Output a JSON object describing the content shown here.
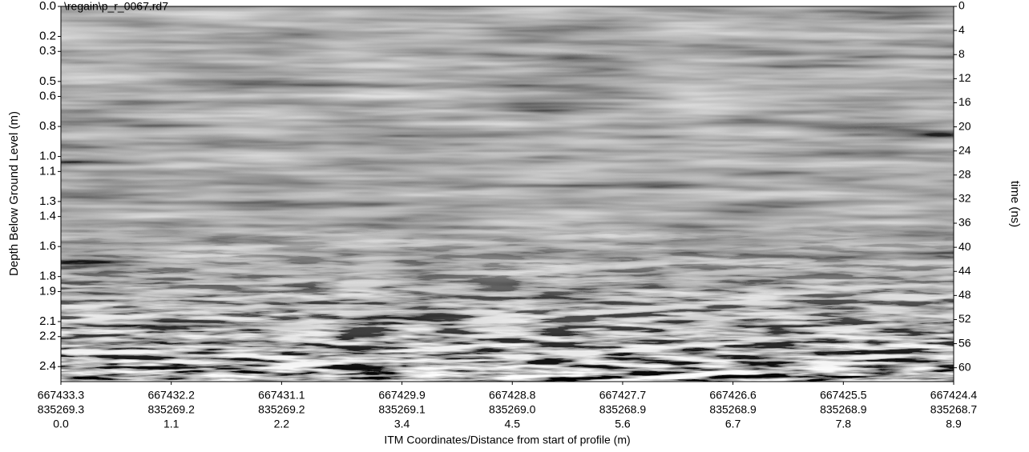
{
  "chart_data": {
    "type": "radargram",
    "title": "\\regain\\p_r_0067.rd7",
    "ylabel": "Depth Below Ground Level (m)",
    "y2label": "time (ns)",
    "xlabel": "ITM Coordinates/Distance from start of profile (m)",
    "xlim": [
      0,
      8.9
    ],
    "xticks": [
      {
        "value": 0,
        "label": "0.0"
      },
      {
        "value": 1.1,
        "label": "1.1"
      },
      {
        "value": 2.2,
        "label": "2.2"
      },
      {
        "value": 3.4,
        "label": "3.4"
      },
      {
        "value": 4.5,
        "label": "4.5"
      },
      {
        "value": 5.6,
        "label": "5.6"
      },
      {
        "value": 6.7,
        "label": "6.7"
      },
      {
        "value": 7.8,
        "label": "7.8"
      },
      {
        "value": 8.9,
        "label": "8.9"
      }
    ],
    "x_easting": [
      "667433.3",
      "667432.2",
      "667431.1",
      "667429.9",
      "667428.8",
      "667427.7",
      "667426.6",
      "667425.5",
      "667424.4"
    ],
    "x_northing": [
      "835269.3",
      "835269.2",
      "835269.2",
      "835269.1",
      "835269.0",
      "835268.9",
      "835268.9",
      "835268.9",
      "835268.7"
    ],
    "ylim": [
      0,
      2.5
    ],
    "yticks": [
      {
        "value": 0,
        "label": "0.0"
      },
      {
        "value": 0.2,
        "label": "0.2"
      },
      {
        "value": 0.3,
        "label": "0.3"
      },
      {
        "value": 0.5,
        "label": "0.5"
      },
      {
        "value": 0.6,
        "label": "0.6"
      },
      {
        "value": 0.8,
        "label": "0.8"
      },
      {
        "value": 1,
        "label": "1.0"
      },
      {
        "value": 1.1,
        "label": "1.1"
      },
      {
        "value": 1.3,
        "label": "1.3"
      },
      {
        "value": 1.4,
        "label": "1.4"
      },
      {
        "value": 1.6,
        "label": "1.6"
      },
      {
        "value": 1.8,
        "label": "1.8"
      },
      {
        "value": 1.9,
        "label": "1.9"
      },
      {
        "value": 2.1,
        "label": "2.1"
      },
      {
        "value": 2.2,
        "label": "2.2"
      },
      {
        "value": 2.4,
        "label": "2.4"
      }
    ],
    "y2lim": [
      0,
      62.3
    ],
    "y2ticks": [
      0,
      4,
      8,
      12,
      16,
      20,
      24,
      28,
      32,
      36,
      40,
      44,
      48,
      52,
      56,
      60
    ]
  }
}
